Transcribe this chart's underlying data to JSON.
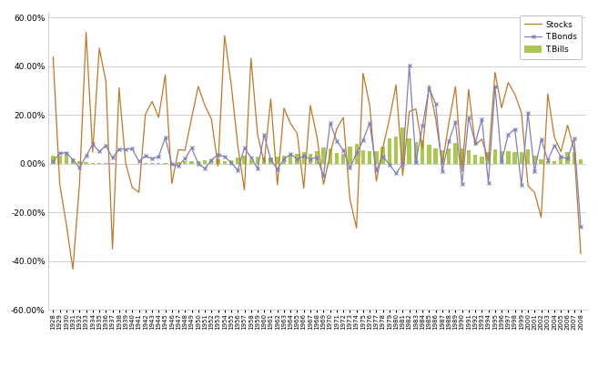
{
  "years": [
    1928,
    1929,
    1930,
    1931,
    1932,
    1933,
    1934,
    1935,
    1936,
    1937,
    1938,
    1939,
    1940,
    1941,
    1942,
    1943,
    1944,
    1945,
    1946,
    1947,
    1948,
    1949,
    1950,
    1951,
    1952,
    1953,
    1954,
    1955,
    1956,
    1957,
    1958,
    1959,
    1960,
    1961,
    1962,
    1963,
    1964,
    1965,
    1966,
    1967,
    1968,
    1969,
    1970,
    1971,
    1972,
    1973,
    1974,
    1975,
    1976,
    1977,
    1978,
    1979,
    1980,
    1981,
    1982,
    1983,
    1984,
    1985,
    1986,
    1987,
    1988,
    1989,
    1990,
    1991,
    1992,
    1993,
    1994,
    1995,
    1996,
    1997,
    1998,
    1999,
    2000,
    2001,
    2002,
    2003,
    2004,
    2005,
    2006,
    2007,
    2008
  ],
  "stocks": [
    0.4381,
    -0.083,
    -0.249,
    -0.4334,
    -0.0831,
    0.5399,
    0.048,
    0.474,
    0.3392,
    -0.3503,
    0.3112,
    0.0004,
    -0.0978,
    -0.1177,
    0.2034,
    0.2557,
    0.1903,
    0.3644,
    -0.0818,
    0.0571,
    0.055,
    0.1879,
    0.3171,
    0.2402,
    0.1837,
    -0.0099,
    0.5262,
    0.3256,
    0.0744,
    -0.1078,
    0.4336,
    0.1196,
    0.0047,
    0.2664,
    -0.0873,
    0.228,
    0.1648,
    0.1245,
    -0.1006,
    0.2398,
    0.1106,
    -0.085,
    0.0401,
    0.1431,
    0.1898,
    -0.1466,
    -0.2647,
    0.372,
    0.2393,
    -0.0718,
    0.0656,
    0.1844,
    0.3242,
    -0.0491,
    0.2141,
    0.2251,
    0.0627,
    0.3216,
    0.1847,
    -0.002,
    0.1661,
    0.3169,
    -0.031,
    0.3047,
    0.0762,
    0.1008,
    0.0132,
    0.3758,
    0.2296,
    0.3336,
    0.2858,
    0.2104,
    -0.091,
    -0.1189,
    -0.221,
    0.2868,
    0.1088,
    0.0491,
    0.1579,
    0.0549,
    -0.37
  ],
  "tbonds": [
    0.0084,
    0.042,
    0.0454,
    0.0156,
    -0.0169,
    0.031,
    0.0798,
    0.0498,
    0.0743,
    0.0235,
    0.0602,
    0.0598,
    0.0609,
    0.0093,
    0.0322,
    0.0208,
    0.0281,
    0.1073,
    -0.0013,
    -0.0092,
    0.0208,
    0.0645,
    0.0006,
    -0.0194,
    0.0143,
    0.0372,
    0.0282,
    0.0036,
    -0.0267,
    0.0645,
    0.0255,
    -0.0195,
    0.1178,
    0.0163,
    -0.0225,
    0.0189,
    0.0397,
    0.0193,
    0.0309,
    0.0185,
    0.0268,
    -0.0508,
    0.1675,
    0.0935,
    0.0551,
    -0.0176,
    0.0437,
    0.0966,
    0.1675,
    -0.0267,
    0.0291,
    -0.0042,
    -0.0399,
    -0.0016,
    0.4035,
    0.0068,
    0.1543,
    0.3097,
    0.2471,
    -0.0296,
    0.0915,
    0.1721,
    -0.082,
    0.19,
    0.0852,
    0.1824,
    -0.0781,
    0.3167,
    0.0093,
    0.1195,
    0.1421,
    -0.0865,
    0.2087,
    -0.0312,
    0.1015,
    0.0138,
    0.0749,
    0.0287,
    0.0196,
    0.1021,
    -0.26
  ],
  "tbills": [
    0.0308,
    0.0316,
    0.0455,
    0.0231,
    0.0108,
    0.0069,
    0.0016,
    0.0017,
    0.0018,
    0.0031,
    0.0008,
    0.0006,
    0.0004,
    0.0006,
    0.0027,
    0.0035,
    0.0038,
    0.0038,
    0.0038,
    0.0057,
    0.011,
    0.012,
    0.012,
    0.0149,
    0.0166,
    0.0182,
    0.0086,
    0.0157,
    0.0246,
    0.0314,
    0.0154,
    0.028,
    0.0254,
    0.0235,
    0.0277,
    0.0316,
    0.0354,
    0.0393,
    0.0463,
    0.0414,
    0.052,
    0.0662,
    0.0635,
    0.0435,
    0.0401,
    0.0684,
    0.08,
    0.0561,
    0.0519,
    0.051,
    0.0718,
    0.1038,
    0.1124,
    0.1471,
    0.1054,
    0.088,
    0.0952,
    0.0773,
    0.0616,
    0.0536,
    0.0635,
    0.0837,
    0.0608,
    0.0548,
    0.0351,
    0.0293,
    0.048,
    0.059,
    0.0502,
    0.0505,
    0.0486,
    0.048,
    0.0598,
    0.0333,
    0.0161,
    0.0094,
    0.0114,
    0.0301,
    0.0468,
    0.0464,
    0.0159
  ],
  "stocks_color": "#C07828",
  "tbonds_color": "#8080B8",
  "tbills_color": "#A8C850",
  "background_color": "#FFFFFF",
  "ylim": [
    -0.6,
    0.625
  ],
  "yticks": [
    -0.6,
    -0.4,
    -0.2,
    0.0,
    0.2,
    0.4,
    0.6
  ],
  "grid_color": "#C8C8C8",
  "legend_labels": [
    "T.Bills",
    "Stocks",
    "T.Bonds"
  ],
  "figsize": [
    6.57,
    4.25
  ],
  "dpi": 100
}
